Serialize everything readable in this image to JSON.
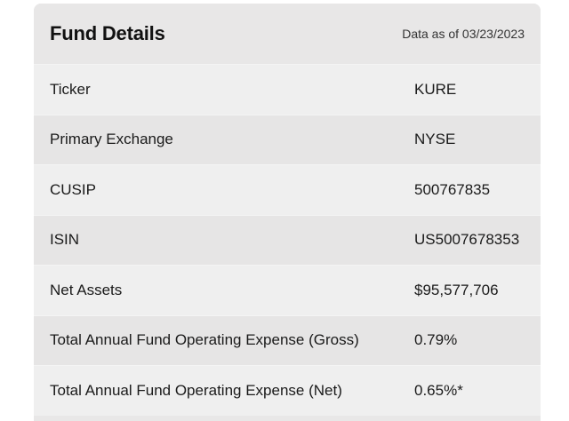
{
  "fund_details": {
    "title": "Fund Details",
    "as_of": "Data as of 03/23/2023",
    "rows": [
      {
        "label": "Ticker",
        "value": "KURE"
      },
      {
        "label": "Primary Exchange",
        "value": "NYSE"
      },
      {
        "label": "CUSIP",
        "value": "500767835"
      },
      {
        "label": "ISIN",
        "value": "US5007678353"
      },
      {
        "label": "Net Assets",
        "value": "$95,577,706"
      },
      {
        "label": "Total Annual Fund Operating Expense (Gross)",
        "value": "0.79%"
      },
      {
        "label": "Total Annual Fund Operating Expense (Net)",
        "value": "0.65%*"
      }
    ]
  }
}
